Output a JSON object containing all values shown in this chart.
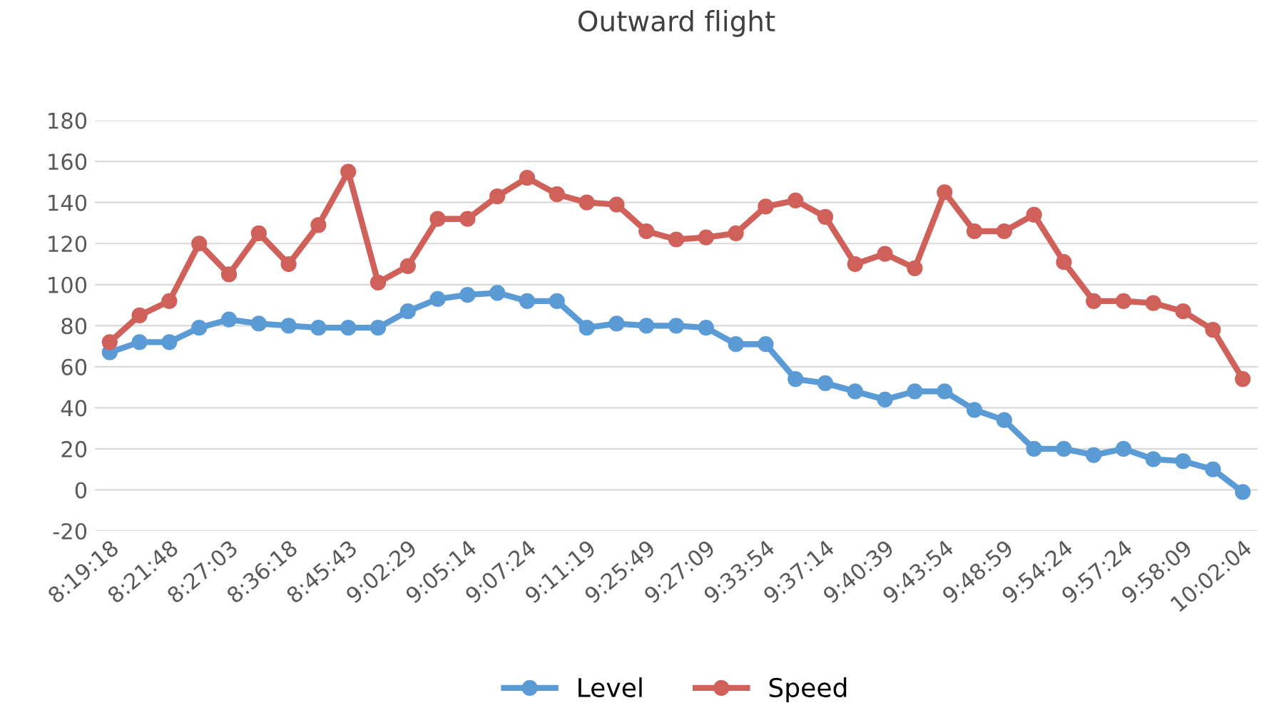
{
  "chart_data": {
    "type": "line",
    "title": "Outward flight",
    "categories": [
      "8:19:18",
      null,
      "8:21:48",
      null,
      "8:27:03",
      null,
      "8:36:18",
      null,
      "8:45:43",
      null,
      "9:02:29",
      null,
      "9:05:14",
      null,
      "9:07:24",
      null,
      "9:11:19",
      null,
      "9:25:49",
      null,
      "9:27:09",
      null,
      "9:33:54",
      null,
      "9:37:14",
      null,
      "9:40:39",
      null,
      "9:43:54",
      null,
      "9:48:59",
      null,
      "9:54:24",
      null,
      "9:57:24",
      null,
      "9:58:09",
      null,
      "10:02:04"
    ],
    "series": [
      {
        "name": "Level",
        "color": "#5b9bd5",
        "values": [
          67,
          72,
          72,
          79,
          83,
          81,
          80,
          79,
          79,
          79,
          87,
          93,
          95,
          96,
          92,
          92,
          79,
          81,
          80,
          80,
          79,
          71,
          71,
          54,
          52,
          48,
          44,
          48,
          48,
          39,
          34,
          20,
          20,
          17,
          20,
          15,
          14,
          10,
          -1
        ]
      },
      {
        "name": "Speed",
        "color": "#d0605a",
        "values": [
          72,
          85,
          92,
          120,
          105,
          125,
          110,
          129,
          155,
          101,
          109,
          132,
          132,
          143,
          152,
          144,
          140,
          139,
          126,
          122,
          123,
          125,
          138,
          141,
          133,
          110,
          115,
          108,
          145,
          126,
          126,
          134,
          111,
          92,
          92,
          91,
          87,
          78,
          54
        ]
      }
    ],
    "ylim": [
      -20,
      180
    ],
    "yticks": [
      -20,
      0,
      20,
      40,
      60,
      80,
      100,
      120,
      140,
      160,
      180
    ],
    "grid": "y",
    "legend": "bottom",
    "marker": "circle",
    "line_style": "solid"
  }
}
